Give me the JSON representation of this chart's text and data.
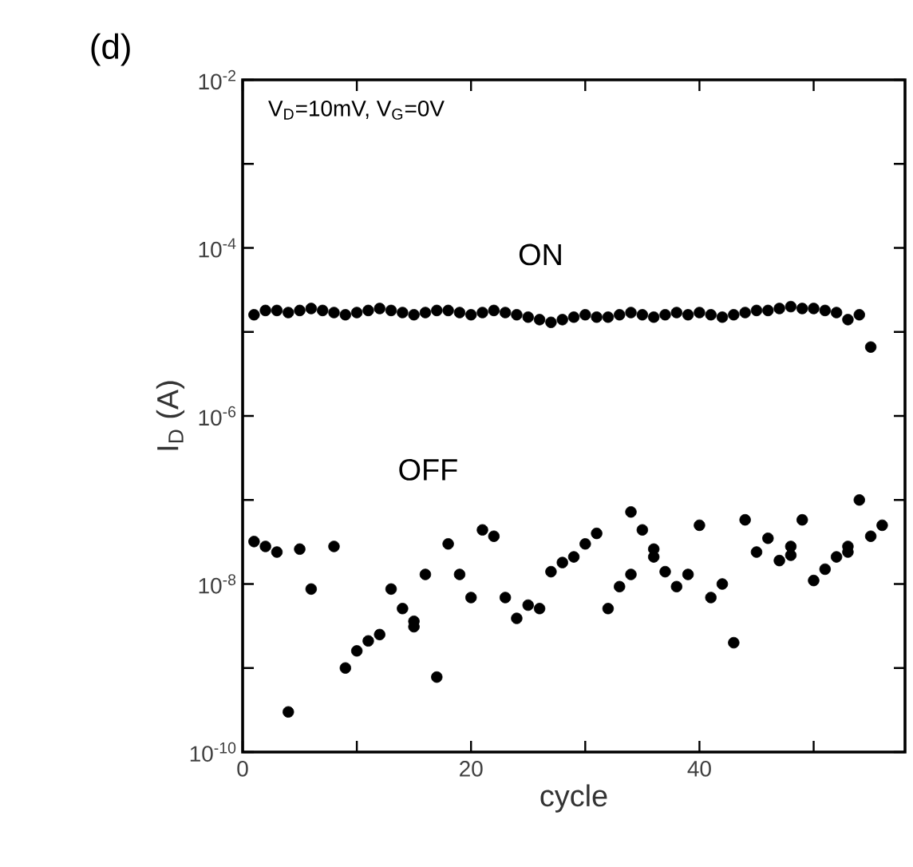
{
  "chart_data": {
    "type": "scatter",
    "xlabel": "cycle",
    "ylabel": "I$_{D}$ (A)",
    "annotations": [
      "(d)",
      "V$_{D}$=10mV, V$_{G}$=0V"
    ],
    "log": "y",
    "marker": "circle",
    "xlim": [
      0,
      58
    ],
    "ylim": [
      1e-10,
      0.01
    ],
    "xticks": [
      0,
      {
        "value": 10,
        "label": null
      },
      20,
      {
        "value": 30,
        "label": null
      },
      40,
      {
        "value": 50,
        "label": null
      }
    ],
    "yticks": [
      {
        "value": 1e-10,
        "label": "10$^{-10}$"
      },
      {
        "value": 1e-09,
        "label": null
      },
      {
        "value": 1e-08,
        "label": "10$^{-8}$"
      },
      {
        "value": 1e-07,
        "label": null
      },
      {
        "value": 1e-06,
        "label": "10$^{-6}$"
      },
      {
        "value": 1e-05,
        "label": null
      },
      {
        "value": 0.0001,
        "label": "10$^{-4}$"
      },
      {
        "value": 0.001,
        "label": null
      },
      {
        "value": 0.01,
        "label": "10$^{-2}$"
      }
    ],
    "series": [
      {
        "name": "ON",
        "color": "#000000",
        "x": [
          1,
          2,
          3,
          4,
          5,
          6,
          7,
          8,
          9,
          10,
          11,
          12,
          13,
          14,
          15,
          16,
          17,
          18,
          19,
          20,
          21,
          22,
          23,
          24,
          25,
          26,
          27,
          28,
          29,
          30,
          31,
          32,
          33,
          34,
          35,
          36,
          37,
          38,
          39,
          40,
          41,
          42,
          43,
          44,
          45,
          46,
          47,
          48,
          49,
          50,
          51,
          52,
          53,
          54,
          55
        ],
        "values": [
          1.6e-05,
          1.8e-05,
          1.8e-05,
          1.7e-05,
          1.8e-05,
          1.9e-05,
          1.8e-05,
          1.7e-05,
          1.6e-05,
          1.7e-05,
          1.8e-05,
          1.9e-05,
          1.8e-05,
          1.7e-05,
          1.6e-05,
          1.7e-05,
          1.8e-05,
          1.8e-05,
          1.7e-05,
          1.6e-05,
          1.7e-05,
          1.8e-05,
          1.7e-05,
          1.6e-05,
          1.5e-05,
          1.4e-05,
          1.3e-05,
          1.4e-05,
          1.5e-05,
          1.6e-05,
          1.5e-05,
          1.5e-05,
          1.6e-05,
          1.7e-05,
          1.6e-05,
          1.5e-05,
          1.6e-05,
          1.7e-05,
          1.6e-05,
          1.7e-05,
          1.6e-05,
          1.5e-05,
          1.6e-05,
          1.7e-05,
          1.8e-05,
          1.8e-05,
          1.9e-05,
          2e-05,
          1.9e-05,
          1.9e-05,
          1.8e-05,
          1.7e-05,
          1.4e-05,
          1.6e-05,
          6.6e-06
        ]
      },
      {
        "name": "OFF",
        "color": "#000000",
        "x": [
          1,
          2,
          3,
          5,
          6,
          8,
          4,
          9,
          10,
          11,
          12,
          13,
          14,
          15,
          15,
          16,
          17,
          18,
          19,
          20,
          21,
          22,
          23,
          24,
          25,
          26,
          27,
          28,
          29,
          30,
          31,
          32,
          33,
          34,
          34,
          35,
          36,
          36,
          37,
          38,
          39,
          40,
          41,
          42,
          43,
          44,
          45,
          46,
          47,
          48,
          48,
          49,
          50,
          51,
          52,
          53,
          53,
          54,
          55,
          56
        ],
        "values": [
          3.2e-08,
          2.8e-08,
          2.4e-08,
          2.6e-08,
          8.7e-09,
          2.8e-08,
          3e-10,
          1e-09,
          1.6e-09,
          2.1e-09,
          2.5e-09,
          8.7e-09,
          5.1e-09,
          3.6e-09,
          3.1e-09,
          1.3e-08,
          7.8e-10,
          3e-08,
          1.3e-08,
          6.9e-09,
          4.4e-08,
          3.7e-08,
          6.9e-09,
          3.9e-09,
          5.6e-09,
          5.1e-09,
          1.4e-08,
          1.8e-08,
          2.1e-08,
          3e-08,
          4e-08,
          5.1e-09,
          9.3e-09,
          1.3e-08,
          7.2e-08,
          4.4e-08,
          2.6e-08,
          2.1e-08,
          1.4e-08,
          9.3e-09,
          1.3e-08,
          5e-08,
          6.9e-09,
          1e-08,
          2e-09,
          5.8e-08,
          2.4e-08,
          3.5e-08,
          1.9e-08,
          2.2e-08,
          2.8e-08,
          5.8e-08,
          1.1e-08,
          1.5e-08,
          2.1e-08,
          2.4e-08,
          2.8e-08,
          1e-07,
          3.7e-08,
          5e-08
        ]
      }
    ]
  }
}
